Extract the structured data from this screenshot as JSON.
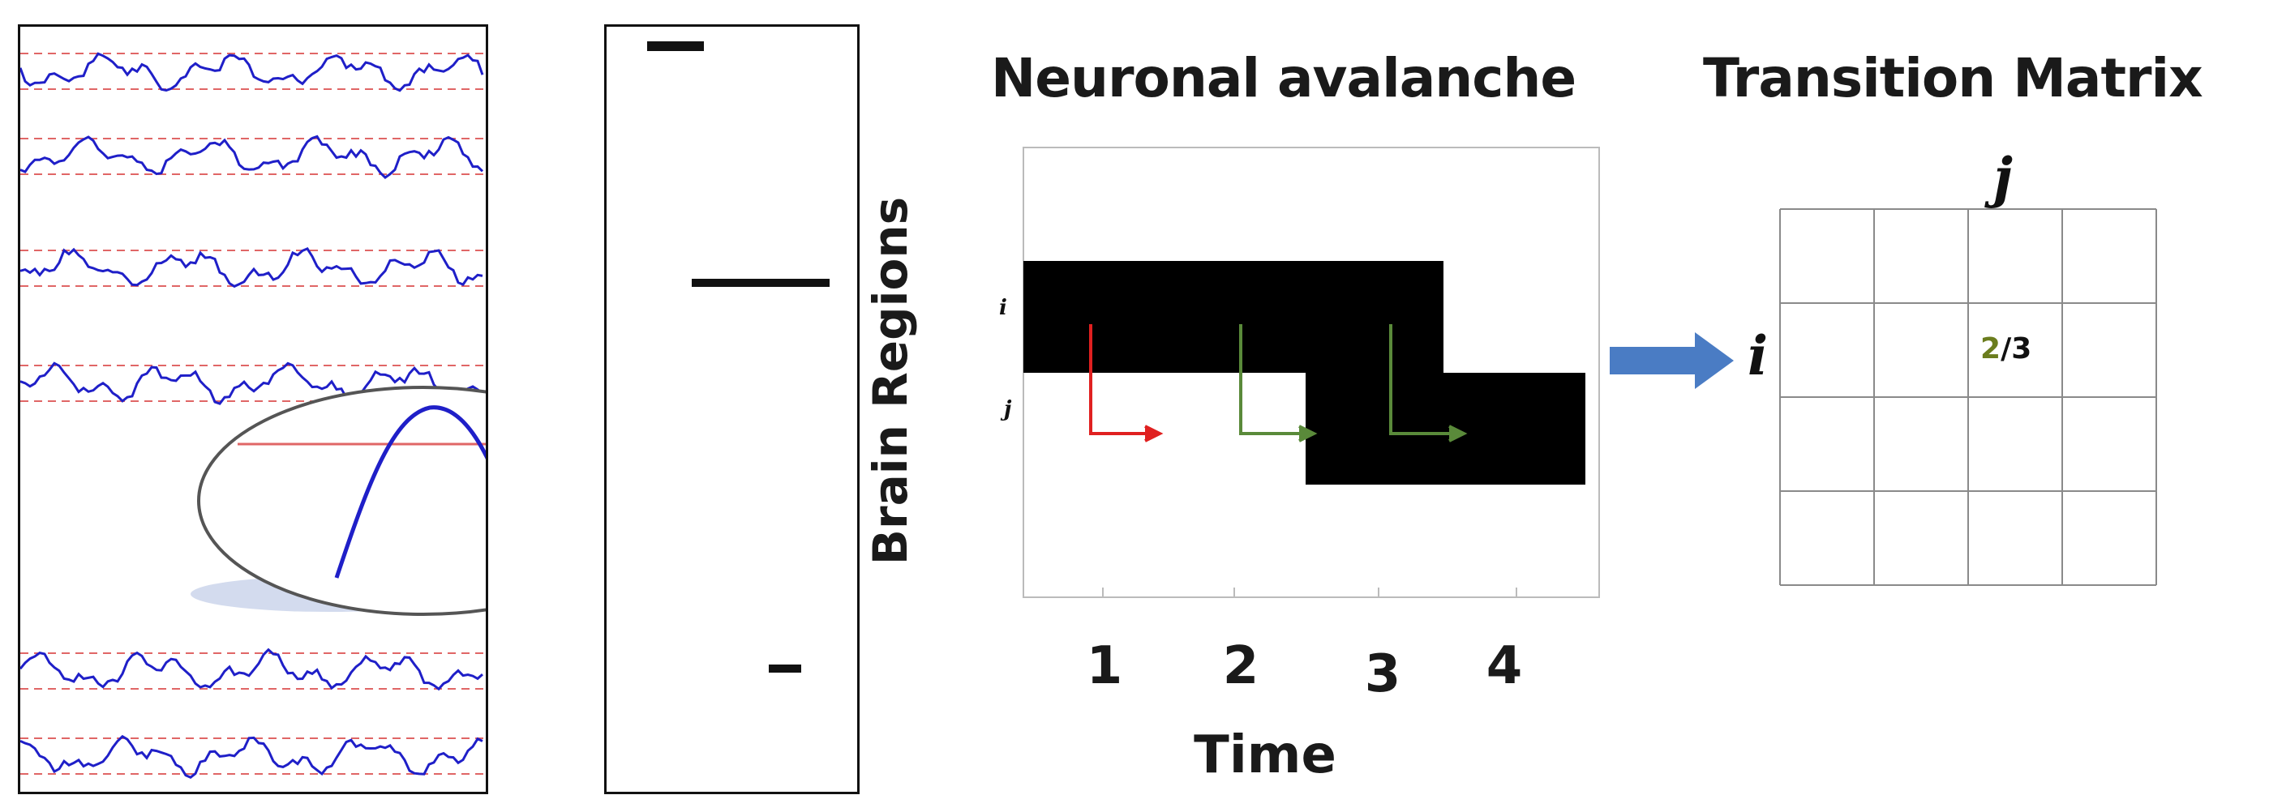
{
  "panels": {
    "avalanche_title": "Neuronal avalanche",
    "matrix_title": "Transition Matrix"
  },
  "avalanche_plot": {
    "ylabel": "Brain Regions",
    "xlabel": "Time",
    "x_ticks": [
      "1",
      "2",
      "3",
      "4"
    ],
    "row_labels": [
      "i",
      "j"
    ]
  },
  "matrix": {
    "col_label": "j",
    "row_label": "i",
    "rows": 4,
    "cols": 4,
    "highlight_cell": {
      "row": 2,
      "col": 3,
      "numerator": "2",
      "separator": "/",
      "denominator": "3"
    }
  },
  "colors": {
    "signal": "#1f1fc8",
    "threshold": "#e06666",
    "arrow_main": "#4a7cc4",
    "arrow_red": "#e02020",
    "arrow_green": "#5a8a3a",
    "numerator_green": "#6b7d1e"
  }
}
